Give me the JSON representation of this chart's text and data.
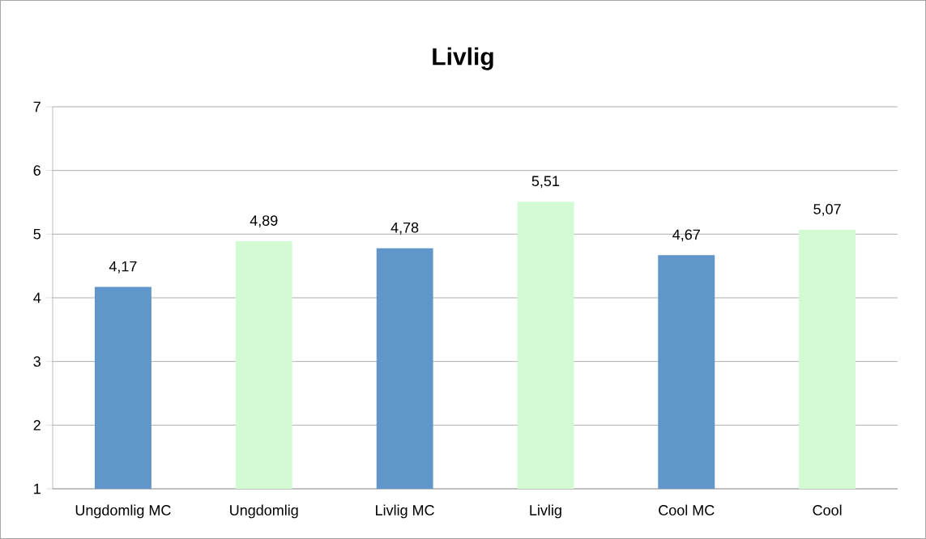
{
  "chart_data": {
    "type": "bar",
    "title": "Livlig",
    "categories": [
      "Ungdomlig MC",
      "Ungdomlig",
      "Livlig MC",
      "Livlig",
      "Cool MC",
      "Cool"
    ],
    "values": [
      4.17,
      4.89,
      4.78,
      5.51,
      4.67,
      5.07
    ],
    "value_labels": [
      "4,17",
      "4,89",
      "4,78",
      "5,51",
      "4,67",
      "5,07"
    ],
    "colors": [
      "#6096c9",
      "#d3fbd3",
      "#6096c9",
      "#d3fbd3",
      "#6096c9",
      "#d3fbd3"
    ],
    "ylim": [
      1,
      7
    ],
    "yticks": [
      1,
      2,
      3,
      4,
      5,
      6,
      7
    ],
    "grid": "y"
  }
}
